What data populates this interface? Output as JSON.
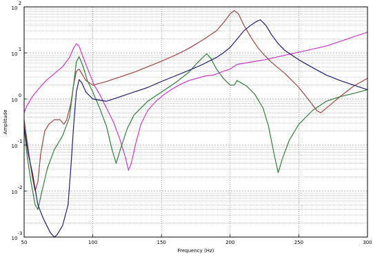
{
  "chart_data": {
    "type": "line",
    "title": "",
    "xlabel": "Frequency (Hz)",
    "ylabel": "Amplitude",
    "xlim": [
      50,
      300
    ],
    "ylim_log10": [
      -3,
      2
    ],
    "yscale": "log",
    "grid": true,
    "legend": "none",
    "x_ticks": [
      {
        "value": 50,
        "label": "50"
      },
      {
        "value": 100,
        "label": "100"
      },
      {
        "value": 150,
        "label": "150"
      },
      {
        "value": 200,
        "label": "200"
      },
      {
        "value": 250,
        "label": "250"
      },
      {
        "value": 300,
        "label": "300"
      }
    ],
    "y_ticks": [
      {
        "exp": -3,
        "base": "10",
        "sup": "-3"
      },
      {
        "exp": -2,
        "base": "10",
        "sup": "-2"
      },
      {
        "exp": -1,
        "base": "10",
        "sup": "-1"
      },
      {
        "exp": 0,
        "base": "10",
        "sup": "0"
      },
      {
        "exp": 1,
        "base": "10",
        "sup": "1"
      },
      {
        "exp": 2,
        "base": "10",
        "sup": "2"
      }
    ],
    "series": [
      {
        "color": "#cc33cc",
        "points": [
          [
            50,
            -0.3
          ],
          [
            52,
            -0.15
          ],
          [
            56,
            0.05
          ],
          [
            60,
            0.2
          ],
          [
            66,
            0.4
          ],
          [
            72,
            0.55
          ],
          [
            78,
            0.7
          ],
          [
            83,
            0.9
          ],
          [
            86,
            1.1
          ],
          [
            88,
            1.2
          ],
          [
            90,
            1.15
          ],
          [
            93,
            0.9
          ],
          [
            97,
            0.6
          ],
          [
            101,
            0.3
          ],
          [
            105,
            0.1
          ],
          [
            110,
            -0.2
          ],
          [
            115,
            -0.5
          ],
          [
            120,
            -0.9
          ],
          [
            124,
            -1.3
          ],
          [
            126,
            -1.55
          ],
          [
            128,
            -1.4
          ],
          [
            131,
            -1.0
          ],
          [
            135,
            -0.55
          ],
          [
            140,
            -0.25
          ],
          [
            146,
            -0.05
          ],
          [
            152,
            0.1
          ],
          [
            158,
            0.22
          ],
          [
            164,
            0.32
          ],
          [
            170,
            0.4
          ],
          [
            176,
            0.45
          ],
          [
            182,
            0.5
          ],
          [
            188,
            0.52
          ],
          [
            195,
            0.6
          ],
          [
            200,
            0.65
          ],
          [
            205,
            0.75
          ],
          [
            215,
            0.8
          ],
          [
            225,
            0.85
          ],
          [
            240,
            0.95
          ],
          [
            255,
            1.05
          ],
          [
            270,
            1.15
          ],
          [
            285,
            1.3
          ],
          [
            300,
            1.45
          ]
        ]
      },
      {
        "color": "#a04040",
        "points": [
          [
            50,
            -0.45
          ],
          [
            53,
            -1.1
          ],
          [
            56,
            -1.7
          ],
          [
            58,
            -2.0
          ],
          [
            60,
            -1.8
          ],
          [
            62,
            -1.2
          ],
          [
            65,
            -0.7
          ],
          [
            68,
            -0.55
          ],
          [
            72,
            -0.45
          ],
          [
            76,
            -0.45
          ],
          [
            79,
            -0.55
          ],
          [
            81,
            -0.45
          ],
          [
            84,
            -0.1
          ],
          [
            86,
            0.3
          ],
          [
            88,
            0.6
          ],
          [
            90,
            0.65
          ],
          [
            92,
            0.55
          ],
          [
            95,
            0.4
          ],
          [
            100,
            0.3
          ],
          [
            110,
            0.38
          ],
          [
            120,
            0.48
          ],
          [
            130,
            0.58
          ],
          [
            140,
            0.7
          ],
          [
            150,
            0.82
          ],
          [
            160,
            0.95
          ],
          [
            170,
            1.1
          ],
          [
            180,
            1.28
          ],
          [
            190,
            1.48
          ],
          [
            195,
            1.65
          ],
          [
            200,
            1.85
          ],
          [
            203,
            1.92
          ],
          [
            206,
            1.85
          ],
          [
            210,
            1.6
          ],
          [
            215,
            1.35
          ],
          [
            220,
            1.12
          ],
          [
            225,
            0.95
          ],
          [
            230,
            0.8
          ],
          [
            240,
            0.55
          ],
          [
            250,
            0.25
          ],
          [
            258,
            -0.05
          ],
          [
            263,
            -0.25
          ],
          [
            266,
            -0.3
          ],
          [
            270,
            -0.2
          ],
          [
            280,
            0.05
          ],
          [
            290,
            0.28
          ],
          [
            300,
            0.45
          ]
        ]
      },
      {
        "color": "#2e7d3a",
        "points": [
          [
            50,
            -0.6
          ],
          [
            52,
            -1.2
          ],
          [
            55,
            -1.8
          ],
          [
            58,
            -2.3
          ],
          [
            60,
            -2.4
          ],
          [
            63,
            -2.0
          ],
          [
            67,
            -1.5
          ],
          [
            72,
            -1.1
          ],
          [
            78,
            -0.8
          ],
          [
            83,
            -0.4
          ],
          [
            86,
            0.3
          ],
          [
            88,
            0.8
          ],
          [
            90,
            0.92
          ],
          [
            93,
            0.7
          ],
          [
            96,
            0.4
          ],
          [
            100,
            0.15
          ],
          [
            105,
            -0.2
          ],
          [
            110,
            -0.6
          ],
          [
            114,
            -1.1
          ],
          [
            117,
            -1.4
          ],
          [
            120,
            -1.1
          ],
          [
            125,
            -0.65
          ],
          [
            130,
            -0.35
          ],
          [
            140,
            -0.05
          ],
          [
            150,
            0.15
          ],
          [
            160,
            0.35
          ],
          [
            170,
            0.58
          ],
          [
            175,
            0.75
          ],
          [
            180,
            0.9
          ],
          [
            183,
            0.98
          ],
          [
            186,
            0.88
          ],
          [
            190,
            0.65
          ],
          [
            195,
            0.45
          ],
          [
            200,
            0.3
          ],
          [
            203,
            0.3
          ],
          [
            205,
            0.4
          ],
          [
            208,
            0.35
          ],
          [
            212,
            0.28
          ],
          [
            218,
            0.1
          ],
          [
            224,
            -0.2
          ],
          [
            228,
            -0.6
          ],
          [
            232,
            -1.2
          ],
          [
            235,
            -1.6
          ],
          [
            238,
            -1.3
          ],
          [
            243,
            -0.9
          ],
          [
            250,
            -0.55
          ],
          [
            260,
            -0.25
          ],
          [
            270,
            -0.05
          ],
          [
            280,
            0.05
          ],
          [
            290,
            0.12
          ],
          [
            300,
            0.2
          ]
        ]
      },
      {
        "color": "#1c1c70",
        "points": [
          [
            50,
            -0.6
          ],
          [
            53,
            -1.2
          ],
          [
            56,
            -1.6
          ],
          [
            60,
            -2.3
          ],
          [
            64,
            -2.6
          ],
          [
            69,
            -2.9
          ],
          [
            72,
            -3.0
          ],
          [
            74,
            -2.95
          ],
          [
            78,
            -2.75
          ],
          [
            82,
            -2.3
          ],
          [
            84,
            -1.5
          ],
          [
            86,
            -0.6
          ],
          [
            88,
            0.15
          ],
          [
            90,
            0.42
          ],
          [
            92,
            0.35
          ],
          [
            95,
            0.15
          ],
          [
            100,
            0.0
          ],
          [
            110,
            -0.05
          ],
          [
            120,
            0.05
          ],
          [
            130,
            0.15
          ],
          [
            140,
            0.25
          ],
          [
            150,
            0.38
          ],
          [
            160,
            0.5
          ],
          [
            170,
            0.62
          ],
          [
            180,
            0.75
          ],
          [
            190,
            0.9
          ],
          [
            195,
            1.0
          ],
          [
            200,
            1.12
          ],
          [
            205,
            1.3
          ],
          [
            210,
            1.48
          ],
          [
            215,
            1.6
          ],
          [
            219,
            1.68
          ],
          [
            222,
            1.72
          ],
          [
            226,
            1.6
          ],
          [
            230,
            1.4
          ],
          [
            235,
            1.2
          ],
          [
            240,
            1.05
          ],
          [
            250,
            0.85
          ],
          [
            260,
            0.68
          ],
          [
            270,
            0.52
          ],
          [
            280,
            0.4
          ],
          [
            290,
            0.3
          ],
          [
            300,
            0.2
          ]
        ]
      }
    ]
  }
}
